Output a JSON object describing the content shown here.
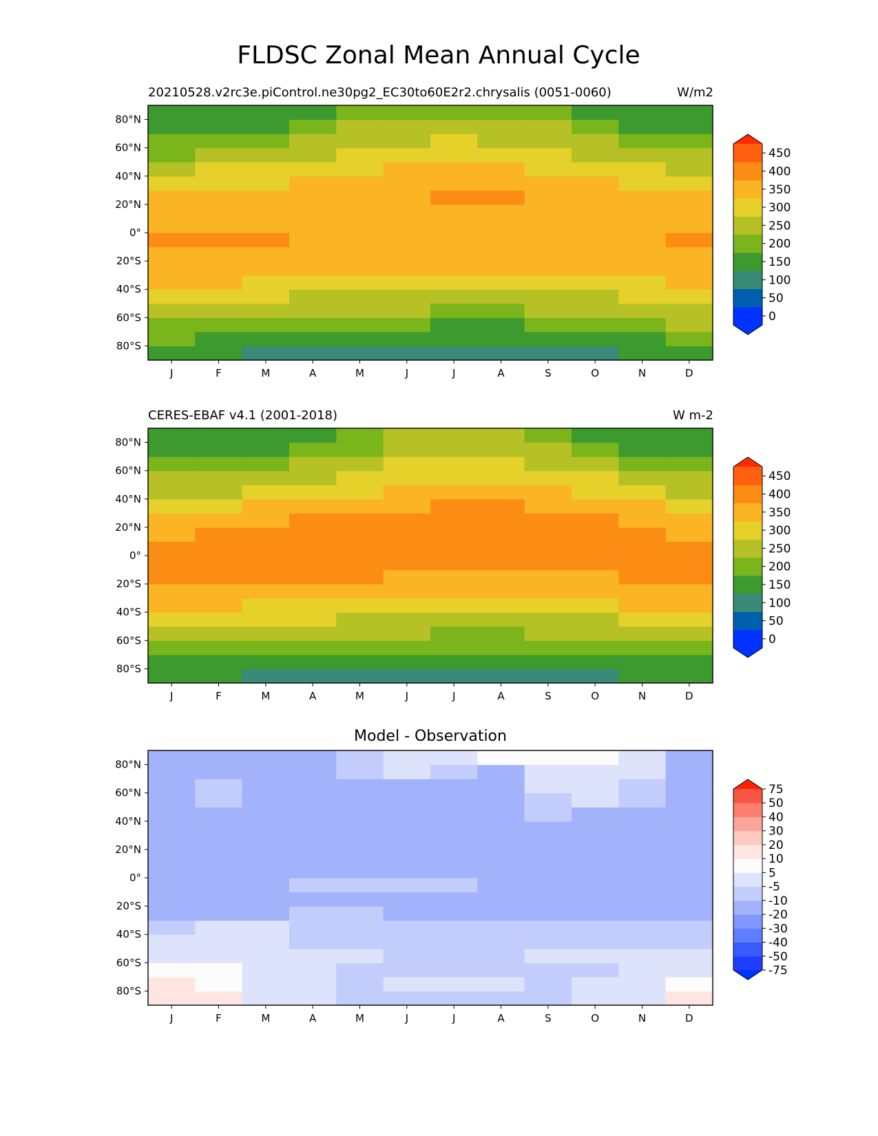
{
  "figure_title": "FLDSC Zonal Mean Annual Cycle",
  "chart_data": [
    {
      "type": "heatmap",
      "title_left": "20210528.v2rc3e.piControl.ne30pg2_EC30to60E2r2.chrysalis (0051-0060)",
      "title_right": "W/m2",
      "x_categories": [
        "J",
        "F",
        "M",
        "A",
        "M",
        "J",
        "J",
        "A",
        "S",
        "O",
        "N",
        "D"
      ],
      "y_ticks": [
        80,
        60,
        40,
        20,
        0,
        -20,
        -40,
        -60,
        -80
      ],
      "y_tick_labels": [
        "80°N",
        "60°N",
        "40°N",
        "20°N",
        "0°",
        "20°S",
        "40°S",
        "60°S",
        "80°S"
      ],
      "ylim": [
        -90,
        90
      ],
      "lat_edges": [
        -90,
        -80,
        -70,
        -60,
        -50,
        -40,
        -30,
        -20,
        -10,
        0,
        10,
        20,
        30,
        40,
        50,
        60,
        70,
        80,
        90
      ],
      "values": [
        [
          160,
          140,
          120,
          115,
          110,
          95,
          85,
          85,
          85,
          110,
          140,
          170
        ],
        [
          180,
          165,
          150,
          150,
          145,
          140,
          130,
          130,
          135,
          145,
          165,
          190
        ],
        [
          220,
          200,
          190,
          185,
          180,
          175,
          170,
          170,
          175,
          180,
          200,
          225
        ],
        [
          260,
          250,
          240,
          235,
          230,
          225,
          220,
          220,
          225,
          235,
          245,
          260
        ],
        [
          300,
          290,
          280,
          270,
          265,
          260,
          255,
          255,
          260,
          270,
          285,
          300
        ],
        [
          340,
          330,
          320,
          310,
          300,
          290,
          285,
          285,
          290,
          305,
          320,
          335
        ],
        [
          360,
          355,
          350,
          345,
          340,
          330,
          325,
          325,
          330,
          340,
          350,
          360
        ],
        [
          370,
          370,
          365,
          360,
          355,
          350,
          345,
          345,
          350,
          355,
          360,
          370
        ],
        [
          375,
          375,
          375,
          370,
          365,
          365,
          360,
          360,
          360,
          365,
          370,
          375
        ],
        [
          370,
          370,
          370,
          370,
          370,
          370,
          370,
          370,
          370,
          370,
          370,
          370
        ],
        [
          355,
          360,
          360,
          365,
          365,
          370,
          370,
          370,
          370,
          365,
          360,
          355
        ],
        [
          330,
          340,
          345,
          355,
          360,
          370,
          375,
          375,
          370,
          360,
          345,
          335
        ],
        [
          300,
          310,
          320,
          330,
          345,
          355,
          360,
          360,
          350,
          335,
          315,
          305
        ],
        [
          260,
          275,
          285,
          300,
          315,
          325,
          330,
          330,
          320,
          300,
          280,
          265
        ],
        [
          220,
          235,
          245,
          265,
          285,
          300,
          305,
          305,
          290,
          265,
          240,
          225
        ],
        [
          180,
          190,
          210,
          230,
          250,
          270,
          275,
          270,
          255,
          230,
          200,
          185
        ],
        [
          150,
          160,
          170,
          195,
          225,
          240,
          245,
          240,
          225,
          195,
          165,
          155
        ],
        [
          140,
          140,
          140,
          170,
          195,
          215,
          220,
          215,
          205,
          165,
          140,
          140
        ]
      ],
      "colorbar": {
        "ticks": [
          "0",
          "50",
          "100",
          "150",
          "200",
          "250",
          "300",
          "350",
          "400",
          "450"
        ],
        "boundaries": [
          -25,
          25,
          75,
          125,
          175,
          225,
          275,
          325,
          375,
          425,
          475
        ],
        "colors": [
          "#0033ff",
          "#0060b0",
          "#3a8a78",
          "#3c9a2e",
          "#7ab51c",
          "#b5c124",
          "#e6d02a",
          "#fbb424",
          "#fb8c14",
          "#ff6010"
        ],
        "under_color": "#0033ff",
        "over_color": "#ff2a00"
      }
    },
    {
      "type": "heatmap",
      "title_left": "CERES-EBAF v4.1 (2001-2018)",
      "title_right": "W m-2",
      "x_categories": [
        "J",
        "F",
        "M",
        "A",
        "M",
        "J",
        "J",
        "A",
        "S",
        "O",
        "N",
        "D"
      ],
      "y_ticks": [
        80,
        60,
        40,
        20,
        0,
        -20,
        -40,
        -60,
        -80
      ],
      "y_tick_labels": [
        "80°N",
        "60°N",
        "40°N",
        "20°N",
        "0°",
        "20°S",
        "40°S",
        "60°S",
        "80°S"
      ],
      "ylim": [
        -90,
        90
      ],
      "lat_edges": [
        -90,
        -80,
        -70,
        -60,
        -50,
        -40,
        -30,
        -20,
        -10,
        0,
        10,
        20,
        30,
        40,
        50,
        60,
        70,
        80,
        90
      ],
      "values": [
        [
          140,
          135,
          120,
          115,
          115,
          105,
          90,
          90,
          100,
          120,
          140,
          160
        ],
        [
          165,
          160,
          150,
          150,
          145,
          140,
          135,
          135,
          140,
          150,
          160,
          170
        ],
        [
          210,
          200,
          195,
          190,
          185,
          180,
          175,
          175,
          180,
          190,
          200,
          215
        ],
        [
          255,
          250,
          240,
          235,
          230,
          225,
          220,
          220,
          225,
          235,
          245,
          255
        ],
        [
          295,
          290,
          280,
          275,
          265,
          260,
          255,
          255,
          260,
          270,
          285,
          295
        ],
        [
          335,
          330,
          320,
          310,
          305,
          295,
          290,
          290,
          295,
          310,
          325,
          335
        ],
        [
          365,
          360,
          355,
          350,
          345,
          335,
          330,
          330,
          335,
          345,
          355,
          365
        ],
        [
          380,
          380,
          385,
          380,
          375,
          370,
          365,
          365,
          365,
          370,
          375,
          380
        ],
        [
          385,
          390,
          400,
          395,
          390,
          385,
          380,
          380,
          380,
          380,
          385,
          385
        ],
        [
          380,
          390,
          405,
          405,
          405,
          405,
          400,
          400,
          400,
          395,
          390,
          380
        ],
        [
          370,
          375,
          385,
          390,
          395,
          405,
          410,
          410,
          405,
          400,
          380,
          370
        ],
        [
          345,
          355,
          365,
          375,
          380,
          390,
          395,
          395,
          390,
          375,
          360,
          350
        ],
        [
          305,
          315,
          325,
          340,
          355,
          365,
          375,
          375,
          365,
          345,
          325,
          315
        ],
        [
          260,
          270,
          285,
          305,
          320,
          335,
          345,
          345,
          330,
          310,
          285,
          270
        ],
        [
          225,
          235,
          245,
          265,
          285,
          305,
          315,
          315,
          300,
          275,
          250,
          235
        ],
        [
          185,
          190,
          210,
          230,
          255,
          275,
          290,
          285,
          270,
          235,
          210,
          190
        ],
        [
          160,
          160,
          170,
          195,
          220,
          240,
          255,
          245,
          225,
          190,
          165,
          160
        ],
        [
          145,
          145,
          145,
          165,
          210,
          225,
          230,
          225,
          210,
          160,
          145,
          140
        ]
      ],
      "colorbar": {
        "ticks": [
          "0",
          "50",
          "100",
          "150",
          "200",
          "250",
          "300",
          "350",
          "400",
          "450"
        ],
        "boundaries": [
          -25,
          25,
          75,
          125,
          175,
          225,
          275,
          325,
          375,
          425,
          475
        ],
        "colors": [
          "#0033ff",
          "#0060b0",
          "#3a8a78",
          "#3c9a2e",
          "#7ab51c",
          "#b5c124",
          "#e6d02a",
          "#fbb424",
          "#fb8c14",
          "#ff6010"
        ],
        "under_color": "#0033ff",
        "over_color": "#ff2a00"
      }
    },
    {
      "type": "heatmap",
      "title_center": "Model - Observation",
      "x_categories": [
        "J",
        "F",
        "M",
        "A",
        "M",
        "J",
        "J",
        "A",
        "S",
        "O",
        "N",
        "D"
      ],
      "y_ticks": [
        80,
        60,
        40,
        20,
        0,
        -20,
        -40,
        -60,
        -80
      ],
      "y_tick_labels": [
        "80°N",
        "60°N",
        "40°N",
        "20°N",
        "0°",
        "20°S",
        "40°S",
        "60°S",
        "80°S"
      ],
      "ylim": [
        -90,
        90
      ],
      "lat_edges": [
        -90,
        -80,
        -70,
        -60,
        -50,
        -40,
        -30,
        -20,
        -10,
        0,
        10,
        20,
        30,
        40,
        50,
        60,
        70,
        80,
        90
      ],
      "values": [
        [
          15,
          10,
          -2,
          -2,
          -7,
          -7,
          -7,
          -7,
          -7,
          -2,
          -2,
          12
        ],
        [
          12,
          8,
          -2,
          -2,
          -7,
          -2,
          -2,
          -2,
          -7,
          -2,
          -2,
          8
        ],
        [
          8,
          6,
          -2,
          -2,
          -7,
          -7,
          -7,
          -7,
          -7,
          -7,
          -2,
          -2
        ],
        [
          2,
          2,
          -2,
          -2,
          -2,
          -7,
          -7,
          -7,
          -2,
          -2,
          -2,
          -2
        ],
        [
          -2,
          -2,
          -2,
          -7,
          -7,
          -7,
          -7,
          -7,
          -7,
          -7,
          -7,
          -7
        ],
        [
          -7,
          -2,
          -2,
          -7,
          -7,
          -7,
          -7,
          -7,
          -7,
          -7,
          -7,
          -7
        ],
        [
          -12,
          -12,
          -12,
          -7,
          -7,
          -12,
          -12,
          -12,
          -12,
          -12,
          -12,
          -12
        ],
        [
          -12,
          -12,
          -12,
          -12,
          -12,
          -12,
          -12,
          -12,
          -15,
          -15,
          -12,
          -12
        ],
        [
          -12,
          -12,
          -12,
          -7,
          -7,
          -7,
          -7,
          -12,
          -12,
          -12,
          -12,
          -12
        ],
        [
          -12,
          -12,
          -15,
          -15,
          -15,
          -12,
          -12,
          -12,
          -12,
          -12,
          -12,
          -12
        ],
        [
          -12,
          -15,
          -15,
          -18,
          -18,
          -12,
          -12,
          -12,
          -12,
          -12,
          -12,
          -12
        ],
        [
          -12,
          -18,
          -18,
          -18,
          -18,
          -15,
          -12,
          -12,
          -12,
          -12,
          -12,
          -12
        ],
        [
          -12,
          -12,
          -12,
          -12,
          -12,
          -12,
          -12,
          -12,
          -12,
          -12,
          -12,
          -12
        ],
        [
          -12,
          -12,
          -12,
          -12,
          -12,
          -12,
          -12,
          -12,
          -7,
          -12,
          -12,
          -12
        ],
        [
          -12,
          -7,
          -12,
          -12,
          -12,
          -12,
          -12,
          -12,
          -7,
          -2,
          -7,
          -12
        ],
        [
          -12,
          -7,
          -12,
          -12,
          -12,
          -12,
          -15,
          -12,
          -2,
          -2,
          -7,
          -15
        ],
        [
          -12,
          -12,
          -12,
          -12,
          -7,
          -2,
          -7,
          -12,
          -2,
          -2,
          -2,
          -12
        ],
        [
          -15,
          -12,
          -12,
          -12,
          -7,
          -2,
          -2,
          5,
          7,
          5,
          -2,
          -12
        ]
      ],
      "colorbar": {
        "ticks": [
          "-75",
          "-50",
          "-40",
          "-30",
          "-20",
          "-10",
          "-5",
          "5",
          "10",
          "20",
          "30",
          "40",
          "50",
          "75"
        ],
        "boundaries": [
          -75,
          -50,
          -40,
          -30,
          -20,
          -10,
          -5,
          5,
          10,
          20,
          30,
          40,
          50,
          75
        ],
        "colors": [
          "#1f3dff",
          "#3a5cff",
          "#5f7dff",
          "#8196ff",
          "#a2b2fb",
          "#c2cdfb",
          "#dde3fb",
          "#fcfcfc",
          "#fde6e2",
          "#fdcac0",
          "#fca69a",
          "#fb7e70",
          "#f85544"
        ],
        "under_color": "#0033ff",
        "over_color": "#ff2200"
      }
    }
  ]
}
